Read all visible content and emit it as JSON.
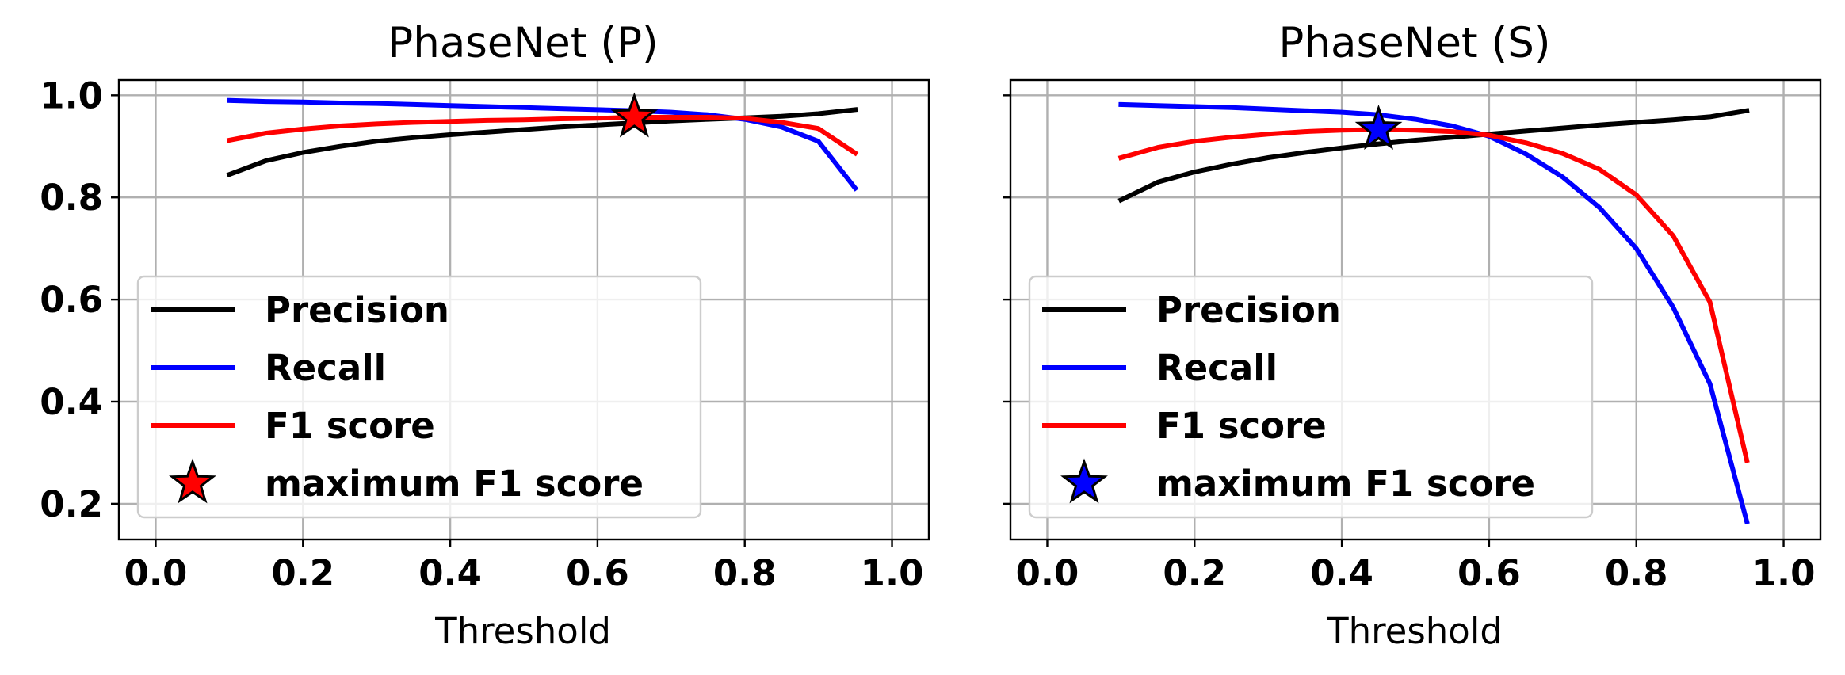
{
  "chart_data": [
    {
      "type": "line",
      "title": "PhaseNet (P)",
      "xlabel": "Threshold",
      "ylabel": "",
      "xlim": [
        -0.05,
        1.05
      ],
      "ylim": [
        0.13,
        1.03
      ],
      "xticks": [
        "0.0",
        "0.2",
        "0.4",
        "0.6",
        "0.8",
        "1.0"
      ],
      "yticks": [
        "0.2",
        "0.4",
        "0.6",
        "0.8",
        "1.0"
      ],
      "show_yticklabels": true,
      "grid": true,
      "legend_location": "lower-left",
      "x": [
        0.1,
        0.15,
        0.2,
        0.25,
        0.3,
        0.35,
        0.4,
        0.45,
        0.5,
        0.55,
        0.6,
        0.65,
        0.7,
        0.75,
        0.8,
        0.85,
        0.9,
        0.95
      ],
      "series": [
        {
          "name": "Precision",
          "color": "#000000",
          "values": [
            0.845,
            0.872,
            0.888,
            0.9,
            0.91,
            0.917,
            0.923,
            0.928,
            0.933,
            0.938,
            0.942,
            0.946,
            0.95,
            0.953,
            0.956,
            0.959,
            0.964,
            0.972
          ]
        },
        {
          "name": "Recall",
          "color": "#0000ff",
          "values": [
            0.99,
            0.988,
            0.987,
            0.985,
            0.984,
            0.982,
            0.98,
            0.978,
            0.976,
            0.974,
            0.972,
            0.97,
            0.967,
            0.962,
            0.953,
            0.938,
            0.91,
            0.818
          ]
        },
        {
          "name": "F1 score",
          "color": "#ff0000",
          "values": [
            0.912,
            0.926,
            0.934,
            0.94,
            0.944,
            0.947,
            0.949,
            0.951,
            0.952,
            0.954,
            0.955,
            0.957,
            0.957,
            0.957,
            0.955,
            0.947,
            0.935,
            0.887
          ]
        }
      ],
      "marker": {
        "name": "maximum F1 score",
        "x": 0.65,
        "y": 0.957,
        "color": "#ff0000"
      }
    },
    {
      "type": "line",
      "title": "PhaseNet (S)",
      "xlabel": "Threshold",
      "ylabel": "",
      "xlim": [
        -0.05,
        1.05
      ],
      "ylim": [
        0.13,
        1.03
      ],
      "xticks": [
        "0.0",
        "0.2",
        "0.4",
        "0.6",
        "0.8",
        "1.0"
      ],
      "yticks": [
        "0.2",
        "0.4",
        "0.6",
        "0.8",
        "1.0"
      ],
      "show_yticklabels": false,
      "grid": true,
      "legend_location": "lower-left",
      "x": [
        0.1,
        0.15,
        0.2,
        0.25,
        0.3,
        0.35,
        0.4,
        0.45,
        0.5,
        0.55,
        0.6,
        0.65,
        0.7,
        0.75,
        0.8,
        0.85,
        0.9,
        0.95
      ],
      "series": [
        {
          "name": "Precision",
          "color": "#000000",
          "values": [
            0.795,
            0.83,
            0.85,
            0.865,
            0.878,
            0.888,
            0.897,
            0.905,
            0.912,
            0.918,
            0.924,
            0.93,
            0.936,
            0.942,
            0.947,
            0.952,
            0.958,
            0.97
          ]
        },
        {
          "name": "Recall",
          "color": "#0000ff",
          "values": [
            0.982,
            0.98,
            0.978,
            0.976,
            0.973,
            0.97,
            0.967,
            0.962,
            0.953,
            0.94,
            0.92,
            0.885,
            0.84,
            0.78,
            0.7,
            0.585,
            0.435,
            0.165
          ]
        },
        {
          "name": "F1 score",
          "color": "#ff0000",
          "values": [
            0.878,
            0.898,
            0.91,
            0.918,
            0.924,
            0.929,
            0.932,
            0.933,
            0.932,
            0.929,
            0.922,
            0.907,
            0.886,
            0.855,
            0.805,
            0.725,
            0.595,
            0.285
          ]
        }
      ],
      "marker": {
        "name": "maximum F1 score",
        "x": 0.45,
        "y": 0.933,
        "color": "#0000ff"
      }
    }
  ]
}
